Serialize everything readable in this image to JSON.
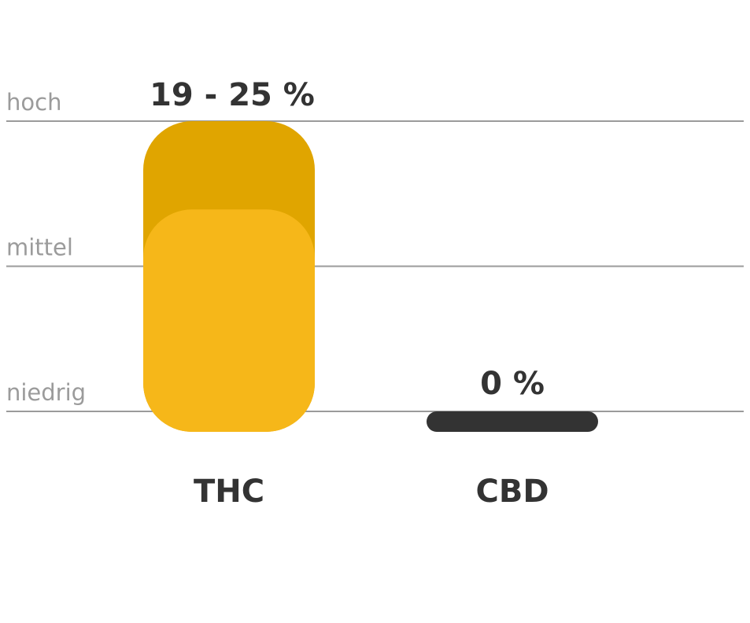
{
  "chart_data": {
    "type": "bar",
    "y_levels": [
      "niedrig",
      "mittel",
      "hoch"
    ],
    "ylim": [
      0,
      2
    ],
    "grid": true,
    "categories": [
      "THC",
      "CBD"
    ],
    "series": [
      {
        "values": [
          {
            "category": "THC",
            "min_level": 1.5,
            "max_level": 2.0,
            "label": "19 - 25 %"
          },
          {
            "category": "CBD",
            "min_level": 0,
            "max_level": 0,
            "label": "0 %"
          }
        ]
      }
    ],
    "colors": {
      "range_high": "#e0a500",
      "range_low": "#f6b719",
      "zero_bar": "#333333",
      "grid": "#9b9b9b",
      "text": "#333333"
    }
  }
}
